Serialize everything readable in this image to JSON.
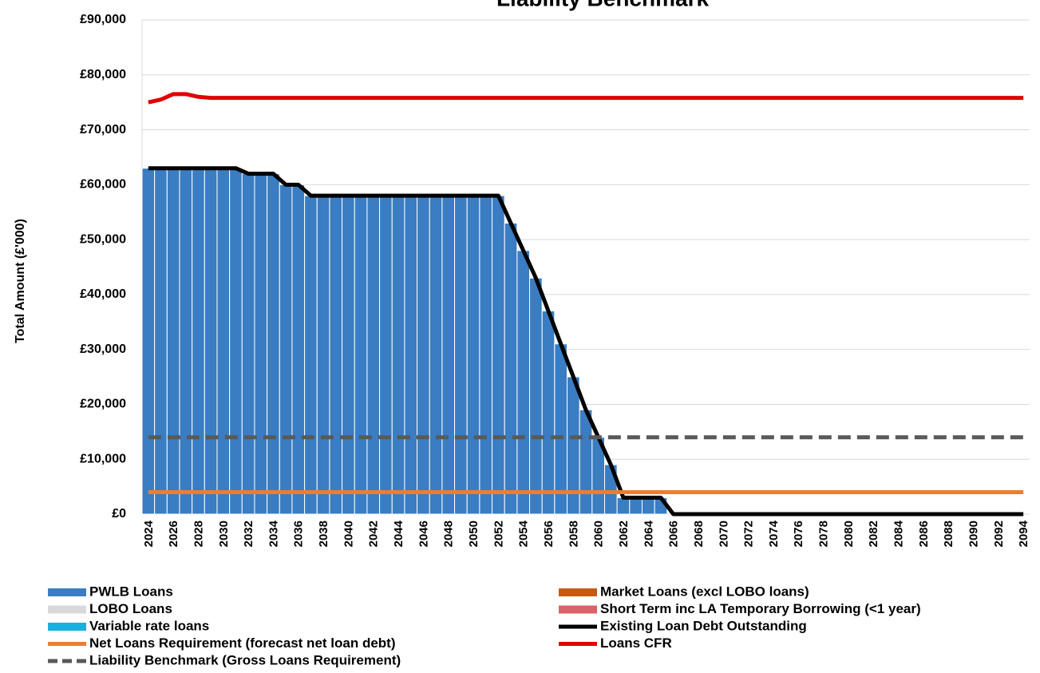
{
  "chart_data": {
    "type": "bar",
    "title": "Liability Benchmark",
    "y_label": "Total Amount (£'000)",
    "categories": [
      "2024",
      null,
      "2026",
      null,
      "2028",
      null,
      "2030",
      null,
      "2032",
      null,
      "2034",
      null,
      "2036",
      null,
      "2038",
      null,
      "2040",
      null,
      "2042",
      null,
      "2044",
      null,
      "2046",
      null,
      "2048",
      null,
      "2050",
      null,
      "2052",
      null,
      "2054",
      null,
      "2056",
      null,
      "2058",
      null,
      "2060",
      null,
      "2062",
      null,
      "2064",
      null,
      "2066",
      null,
      "2068",
      null,
      "2070",
      null,
      "2072",
      null,
      "2074",
      null,
      "2076",
      null,
      "2078",
      null,
      "2080",
      null,
      "2082",
      null,
      "2084",
      null,
      "2086",
      null,
      "2088",
      null,
      "2090",
      null,
      "2092",
      null,
      "2094"
    ],
    "ylim": [
      0,
      90000
    ],
    "yticks": [
      {
        "value": 0,
        "label": "£0"
      },
      {
        "value": 10000,
        "label": "£10,000"
      },
      {
        "value": 20000,
        "label": "£20,000"
      },
      {
        "value": 30000,
        "label": "£30,000"
      },
      {
        "value": 40000,
        "label": "£40,000"
      },
      {
        "value": 50000,
        "label": "£50,000"
      },
      {
        "value": 60000,
        "label": "£60,000"
      },
      {
        "value": 70000,
        "label": "£70,000"
      },
      {
        "value": 80000,
        "label": "£80,000"
      },
      {
        "value": 90000,
        "label": "£90,000"
      }
    ],
    "grid": true,
    "stacked": true,
    "series": [
      {
        "name": "PWLB Loans",
        "kind": "bar",
        "color": "#3a7dc2",
        "values": [
          63000,
          63000,
          63000,
          63000,
          63000,
          63000,
          63000,
          63000,
          62000,
          62000,
          62000,
          60000,
          60000,
          58000,
          58000,
          58000,
          58000,
          58000,
          58000,
          58000,
          58000,
          58000,
          58000,
          58000,
          58000,
          58000,
          58000,
          58000,
          58000,
          53000,
          48000,
          43000,
          37000,
          31000,
          25000,
          19000,
          14000,
          9000,
          3000,
          3000,
          3000,
          3000,
          0,
          0,
          0,
          0,
          0,
          0,
          0,
          0,
          0,
          0,
          0,
          0,
          0,
          0,
          0,
          0,
          0,
          0,
          0,
          0,
          0,
          0,
          0,
          0,
          0,
          0,
          0,
          0,
          0
        ]
      },
      {
        "name": "Market Loans (excl LOBO loans)",
        "kind": "bar",
        "color": "#c55a11",
        "values": [
          0,
          0,
          0,
          0,
          0,
          0,
          0,
          0,
          0,
          0,
          0,
          0,
          0,
          0,
          0,
          0,
          0,
          0,
          0,
          0,
          0,
          0,
          0,
          0,
          0,
          0,
          0,
          0,
          0,
          0,
          0,
          0,
          0,
          0,
          0,
          0,
          0,
          0,
          0,
          0,
          0,
          0,
          0,
          0,
          0,
          0,
          0,
          0,
          0,
          0,
          0,
          0,
          0,
          0,
          0,
          0,
          0,
          0,
          0,
          0,
          0,
          0,
          0,
          0,
          0,
          0,
          0,
          0,
          0,
          0,
          0
        ]
      },
      {
        "name": "LOBO Loans",
        "kind": "bar",
        "color": "#d9d9d9",
        "values": [
          0,
          0,
          0,
          0,
          0,
          0,
          0,
          0,
          0,
          0,
          0,
          0,
          0,
          0,
          0,
          0,
          0,
          0,
          0,
          0,
          0,
          0,
          0,
          0,
          0,
          0,
          0,
          0,
          0,
          0,
          0,
          0,
          0,
          0,
          0,
          0,
          0,
          0,
          0,
          0,
          0,
          0,
          0,
          0,
          0,
          0,
          0,
          0,
          0,
          0,
          0,
          0,
          0,
          0,
          0,
          0,
          0,
          0,
          0,
          0,
          0,
          0,
          0,
          0,
          0,
          0,
          0,
          0,
          0,
          0,
          0
        ]
      },
      {
        "name": "Short Term inc LA Temporary Borrowing (<1 year)",
        "kind": "bar",
        "color": "#d9626a",
        "values": [
          0,
          0,
          0,
          0,
          0,
          0,
          0,
          0,
          0,
          0,
          0,
          0,
          0,
          0,
          0,
          0,
          0,
          0,
          0,
          0,
          0,
          0,
          0,
          0,
          0,
          0,
          0,
          0,
          0,
          0,
          0,
          0,
          0,
          0,
          0,
          0,
          0,
          0,
          0,
          0,
          0,
          0,
          0,
          0,
          0,
          0,
          0,
          0,
          0,
          0,
          0,
          0,
          0,
          0,
          0,
          0,
          0,
          0,
          0,
          0,
          0,
          0,
          0,
          0,
          0,
          0,
          0,
          0,
          0,
          0,
          0
        ]
      },
      {
        "name": "Variable rate loans",
        "kind": "bar",
        "color": "#17b0df",
        "values": [
          0,
          0,
          0,
          0,
          0,
          0,
          0,
          0,
          0,
          0,
          0,
          0,
          0,
          0,
          0,
          0,
          0,
          0,
          0,
          0,
          0,
          0,
          0,
          0,
          0,
          0,
          0,
          0,
          0,
          0,
          0,
          0,
          0,
          0,
          0,
          0,
          0,
          0,
          0,
          0,
          0,
          0,
          0,
          0,
          0,
          0,
          0,
          0,
          0,
          0,
          0,
          0,
          0,
          0,
          0,
          0,
          0,
          0,
          0,
          0,
          0,
          0,
          0,
          0,
          0,
          0,
          0,
          0,
          0,
          0,
          0
        ]
      },
      {
        "name": "Existing Loan Debt Outstanding",
        "kind": "line",
        "color": "#000000",
        "values": [
          63000,
          63000,
          63000,
          63000,
          63000,
          63000,
          63000,
          63000,
          62000,
          62000,
          62000,
          60000,
          60000,
          58000,
          58000,
          58000,
          58000,
          58000,
          58000,
          58000,
          58000,
          58000,
          58000,
          58000,
          58000,
          58000,
          58000,
          58000,
          58000,
          53000,
          48000,
          43000,
          37000,
          31000,
          25000,
          19000,
          14000,
          9000,
          3000,
          3000,
          3000,
          3000,
          0,
          0,
          0,
          0,
          0,
          0,
          0,
          0,
          0,
          0,
          0,
          0,
          0,
          0,
          0,
          0,
          0,
          0,
          0,
          0,
          0,
          0,
          0,
          0,
          0,
          0,
          0,
          0,
          0
        ]
      },
      {
        "name": "Net Loans Requirement (forecast net loan debt)",
        "kind": "line",
        "color": "#ed7d31",
        "values": [
          4000,
          4000,
          4000,
          4000,
          4000,
          4000,
          4000,
          4000,
          4000,
          4000,
          4000,
          4000,
          4000,
          4000,
          4000,
          4000,
          4000,
          4000,
          4000,
          4000,
          4000,
          4000,
          4000,
          4000,
          4000,
          4000,
          4000,
          4000,
          4000,
          4000,
          4000,
          4000,
          4000,
          4000,
          4000,
          4000,
          4000,
          4000,
          4000,
          4000,
          4000,
          4000,
          4000,
          4000,
          4000,
          4000,
          4000,
          4000,
          4000,
          4000,
          4000,
          4000,
          4000,
          4000,
          4000,
          4000,
          4000,
          4000,
          4000,
          4000,
          4000,
          4000,
          4000,
          4000,
          4000,
          4000,
          4000,
          4000,
          4000,
          4000,
          4000
        ]
      },
      {
        "name": "Loans CFR",
        "kind": "line",
        "color": "#e00000",
        "values": [
          75000,
          75500,
          76500,
          76500,
          76000,
          75800,
          75800,
          75800,
          75800,
          75800,
          75800,
          75800,
          75800,
          75800,
          75800,
          75800,
          75800,
          75800,
          75800,
          75800,
          75800,
          75800,
          75800,
          75800,
          75800,
          75800,
          75800,
          75800,
          75800,
          75800,
          75800,
          75800,
          75800,
          75800,
          75800,
          75800,
          75800,
          75800,
          75800,
          75800,
          75800,
          75800,
          75800,
          75800,
          75800,
          75800,
          75800,
          75800,
          75800,
          75800,
          75800,
          75800,
          75800,
          75800,
          75800,
          75800,
          75800,
          75800,
          75800,
          75800,
          75800,
          75800,
          75800,
          75800,
          75800,
          75800,
          75800,
          75800,
          75800,
          75800,
          75800
        ]
      },
      {
        "name": "Liability Benchmark (Gross Loans Requirement)",
        "kind": "line",
        "dashed": true,
        "color": "#595959",
        "values": [
          14000,
          14000,
          14000,
          14000,
          14000,
          14000,
          14000,
          14000,
          14000,
          14000,
          14000,
          14000,
          14000,
          14000,
          14000,
          14000,
          14000,
          14000,
          14000,
          14000,
          14000,
          14000,
          14000,
          14000,
          14000,
          14000,
          14000,
          14000,
          14000,
          14000,
          14000,
          14000,
          14000,
          14000,
          14000,
          14000,
          14000,
          14000,
          14000,
          14000,
          14000,
          14000,
          14000,
          14000,
          14000,
          14000,
          14000,
          14000,
          14000,
          14000,
          14000,
          14000,
          14000,
          14000,
          14000,
          14000,
          14000,
          14000,
          14000,
          14000,
          14000,
          14000,
          14000,
          14000,
          14000,
          14000,
          14000,
          14000,
          14000,
          14000,
          14000
        ]
      }
    ]
  }
}
